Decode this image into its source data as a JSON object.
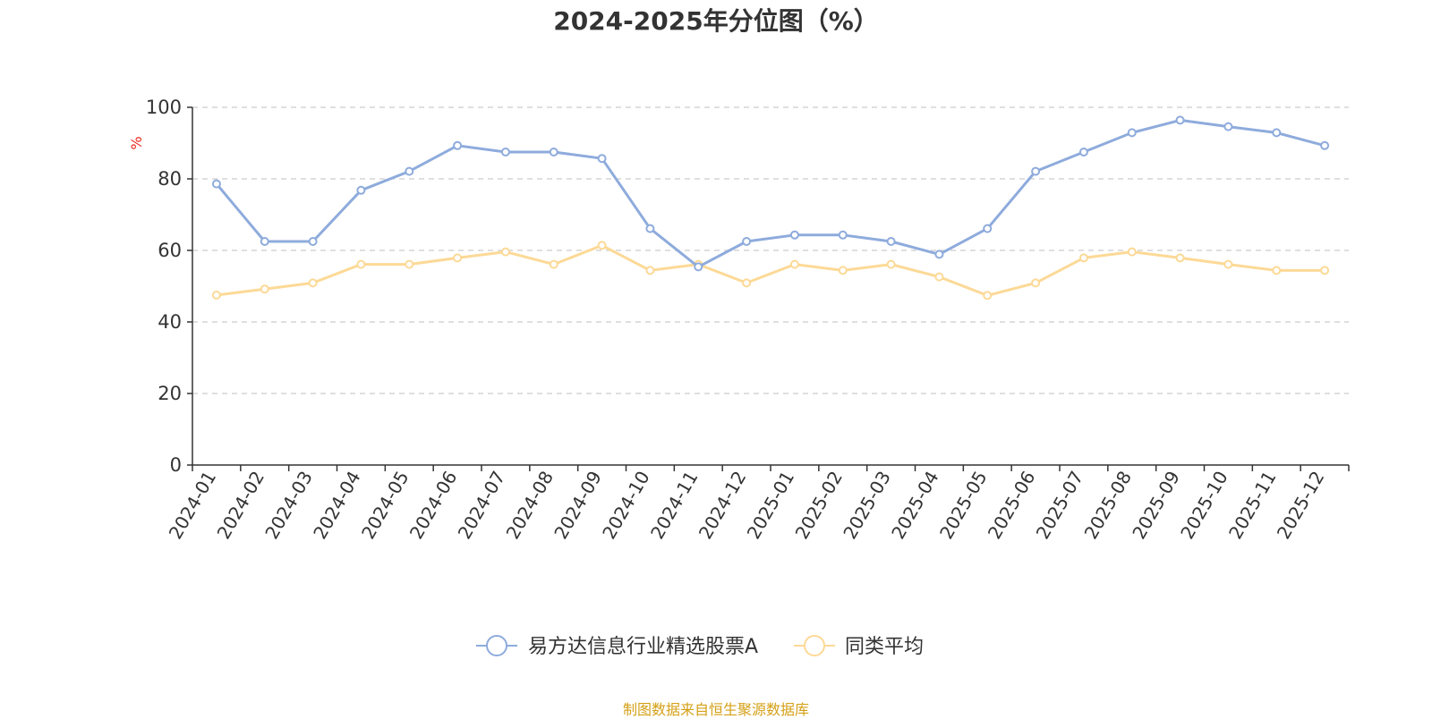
{
  "title": "2024-2025年分位图（%）",
  "source": "制图数据来自恒生聚源数据库",
  "colors": {
    "series_a": "#8eabdc",
    "series_b": "#fcd996",
    "grid": "#cccccc",
    "axis": "#333333",
    "unit": "#e8291c",
    "source": "#d4a017"
  },
  "chart_data": {
    "type": "line",
    "title": "2024-2025年分位图（%）",
    "ylabel": "%",
    "ylim": [
      0,
      100
    ],
    "yticks": [
      0,
      20,
      40,
      60,
      80,
      100
    ],
    "grid": true,
    "legend": "bottom-center",
    "categories": [
      "2024-01",
      "2024-02",
      "2024-03",
      "2024-04",
      "2024-05",
      "2024-06",
      "2024-07",
      "2024-08",
      "2024-09",
      "2024-10",
      "2024-11",
      "2024-12",
      "2025-01",
      "2025-02",
      "2025-03",
      "2025-04",
      "2025-05",
      "2025-06",
      "2025-07",
      "2025-08",
      "2025-09",
      "2025-10",
      "2025-11",
      "2025-12"
    ],
    "series": [
      {
        "name": "易方达信息行业精选股票A",
        "values": [
          78.6,
          62.5,
          62.5,
          76.8,
          82.1,
          89.3,
          87.5,
          87.5,
          85.7,
          66.1,
          55.4,
          62.5,
          64.3,
          64.3,
          62.5,
          58.9,
          66.1,
          82.1,
          87.5,
          92.9,
          96.4,
          94.6,
          92.9,
          89.3
        ]
      },
      {
        "name": "同类平均",
        "values": [
          47.5,
          49.2,
          50.9,
          56.1,
          56.1,
          57.9,
          59.6,
          56.1,
          61.4,
          54.4,
          56.1,
          50.9,
          56.1,
          54.4,
          56.1,
          52.6,
          47.4,
          50.9,
          57.9,
          59.6,
          57.9,
          56.1,
          54.4,
          54.4
        ]
      }
    ]
  }
}
